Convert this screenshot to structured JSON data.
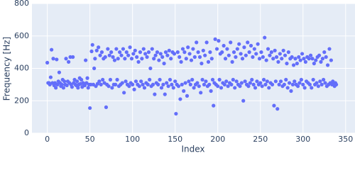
{
  "chart_data": {
    "type": "scatter",
    "x_label": "Index",
    "y_label": "Frequency [Hz]",
    "xlim": [
      -18,
      361
    ],
    "ylim": [
      0,
      800
    ],
    "xticks": [
      0,
      50,
      100,
      150,
      200,
      250,
      300,
      350
    ],
    "yticks": [
      0,
      200,
      400,
      600,
      800
    ],
    "grid": true,
    "series": [
      {
        "color": "#636efa",
        "x": [
          0,
          1,
          2,
          3,
          4,
          5,
          6,
          7,
          8,
          9,
          10,
          11,
          12,
          13,
          14,
          15,
          16,
          17,
          18,
          19,
          20,
          21,
          22,
          23,
          24,
          25,
          26,
          27,
          28,
          29,
          30,
          31,
          32,
          33,
          34,
          35,
          36,
          37,
          38,
          39,
          40,
          41,
          42,
          43,
          44,
          45,
          46,
          47,
          48,
          49,
          50,
          51,
          52,
          53,
          54,
          55,
          56,
          57,
          58,
          59,
          60,
          61,
          62,
          63,
          64,
          65,
          66,
          67,
          68,
          69,
          70,
          71,
          72,
          73,
          74,
          75,
          76,
          77,
          78,
          79,
          80,
          81,
          82,
          83,
          84,
          85,
          86,
          87,
          88,
          89,
          90,
          91,
          92,
          93,
          94,
          95,
          96,
          97,
          98,
          99,
          100,
          101,
          102,
          103,
          104,
          105,
          106,
          107,
          108,
          109,
          110,
          111,
          112,
          113,
          114,
          115,
          116,
          117,
          118,
          119,
          120,
          121,
          122,
          123,
          124,
          125,
          126,
          127,
          128,
          129,
          130,
          131,
          132,
          133,
          134,
          135,
          136,
          137,
          138,
          139,
          140,
          141,
          142,
          143,
          144,
          145,
          146,
          147,
          148,
          149,
          150,
          151,
          152,
          153,
          154,
          155,
          156,
          157,
          158,
          159,
          160,
          161,
          162,
          163,
          164,
          165,
          166,
          167,
          168,
          169,
          170,
          171,
          172,
          173,
          174,
          175,
          176,
          177,
          178,
          179,
          180,
          181,
          182,
          183,
          184,
          185,
          186,
          187,
          188,
          189,
          190,
          191,
          192,
          193,
          194,
          195,
          196,
          197,
          198,
          199,
          200,
          201,
          202,
          203,
          204,
          205,
          206,
          207,
          208,
          209,
          210,
          211,
          212,
          213,
          214,
          215,
          216,
          217,
          218,
          219,
          220,
          221,
          222,
          223,
          224,
          225,
          226,
          227,
          228,
          229,
          230,
          231,
          232,
          233,
          234,
          235,
          236,
          237,
          238,
          239,
          240,
          241,
          242,
          243,
          244,
          245,
          246,
          247,
          248,
          249,
          250,
          251,
          252,
          253,
          254,
          255,
          256,
          257,
          258,
          259,
          260,
          261,
          262,
          263,
          264,
          265,
          266,
          267,
          268,
          269,
          270,
          271,
          272,
          273,
          274,
          275,
          276,
          277,
          278,
          279,
          280,
          281,
          282,
          283,
          284,
          285,
          286,
          287,
          288,
          289,
          290,
          291,
          292,
          293,
          294,
          295,
          296,
          297,
          298,
          299,
          300,
          301,
          302,
          303,
          304,
          305,
          306,
          307,
          308,
          309,
          310,
          311,
          312,
          313,
          314,
          315,
          316,
          317,
          318,
          319,
          320,
          321,
          322,
          323,
          324,
          325,
          326,
          327,
          328,
          329,
          330,
          331,
          332,
          333,
          334,
          335,
          336,
          337,
          338,
          339
        ],
        "values": [
          435,
          310,
          310,
          300,
          345,
          515,
          310,
          460,
          295,
          310,
          280,
          455,
          300,
          320,
          375,
          310,
          290,
          300,
          330,
          280,
          320,
          300,
          460,
          295,
          320,
          440,
          310,
          470,
          300,
          285,
          470,
          310,
          330,
          300,
          295,
          320,
          280,
          300,
          340,
          305,
          330,
          285,
          310,
          300,
          295,
          450,
          310,
          340,
          280,
          300,
          155,
          300,
          505,
          545,
          300,
          400,
          460,
          290,
          510,
          305,
          530,
          320,
          480,
          300,
          500,
          330,
          460,
          310,
          470,
          160,
          300,
          520,
          290,
          480,
          330,
          500,
          280,
          470,
          300,
          450,
          300,
          520,
          330,
          460,
          290,
          500,
          300,
          480,
          310,
          520,
          250,
          460,
          320,
          500,
          300,
          480,
          290,
          530,
          310,
          460,
          300,
          490,
          270,
          510,
          320,
          470,
          300,
          440,
          290,
          500,
          320,
          460,
          300,
          520,
          280,
          490,
          310,
          470,
          300,
          500,
          330,
          400,
          290,
          520,
          300,
          460,
          240,
          480,
          310,
          500,
          300,
          450,
          330,
          490,
          280,
          470,
          300,
          430,
          240,
          500,
          310,
          480,
          290,
          510,
          330,
          460,
          300,
          500,
          280,
          490,
          320,
          120,
          300,
          500,
          290,
          470,
          210,
          440,
          300,
          520,
          260,
          500,
          310,
          460,
          230,
          530,
          320,
          490,
          300,
          450,
          330,
          520,
          280,
          470,
          300,
          560,
          310,
          500,
          290,
          470,
          250,
          430,
          330,
          510,
          300,
          480,
          320,
          560,
          290,
          440,
          300,
          500,
          260,
          460,
          330,
          170,
          310,
          580,
          300,
          520,
          290,
          570,
          330,
          490,
          280,
          500,
          310,
          540,
          300,
          460,
          320,
          520,
          290,
          480,
          310,
          560,
          300,
          440,
          330,
          500,
          280,
          470,
          320,
          520,
          300,
          550,
          290,
          490,
          310,
          460,
          200,
          530,
          320,
          480,
          300,
          560,
          290,
          500,
          310,
          540,
          330,
          470,
          300,
          520,
          280,
          490,
          320,
          550,
          300,
          460,
          310,
          500,
          290,
          470,
          330,
          590,
          300,
          450,
          320,
          520,
          280,
          480,
          310,
          500,
          300,
          460,
          170,
          510,
          320,
          470,
          150,
          440,
          300,
          490,
          320,
          460,
          290,
          510,
          300,
          480,
          330,
          430,
          280,
          500,
          310,
          460,
          260,
          470,
          300,
          420,
          320,
          460,
          300,
          430,
          290,
          470,
          310,
          450,
          330,
          490,
          300,
          460,
          280,
          440,
          320,
          470,
          310,
          460,
          300,
          480,
          280,
          460,
          330,
          430,
          300,
          450,
          310,
          470,
          290,
          480,
          320,
          440,
          300,
          460,
          330,
          500,
          310,
          470,
          290,
          420,
          300,
          520,
          310,
          450,
          300,
          320,
          300,
          290,
          310,
          300
        ]
      }
    ]
  }
}
